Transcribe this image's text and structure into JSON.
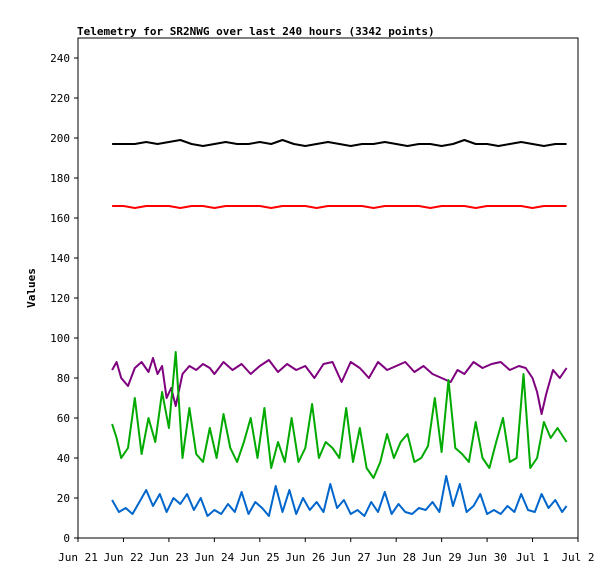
{
  "chart_data": {
    "type": "line",
    "title": "Telemetry for SR2NWG over last 240 hours (3342 points)",
    "xlabel": "",
    "ylabel": "Values",
    "ylim": [
      0,
      250
    ],
    "yticks": [
      0,
      20,
      40,
      60,
      80,
      100,
      120,
      140,
      160,
      180,
      200,
      220,
      240
    ],
    "xticks": [
      "Jun 21",
      "Jun 22",
      "Jun 23",
      "Jun 24",
      "Jun 25",
      "Jun 26",
      "Jun 27",
      "Jun 28",
      "Jun 29",
      "Jun 30",
      "Jul 1",
      "Jul 2"
    ],
    "xlim": [
      0,
      11
    ],
    "grid": false,
    "legend": "none",
    "series": [
      {
        "color": "#000000",
        "x": [
          0.75,
          1.0,
          1.25,
          1.5,
          1.75,
          2.0,
          2.25,
          2.5,
          2.75,
          3.0,
          3.25,
          3.5,
          3.75,
          4.0,
          4.25,
          4.5,
          4.75,
          5.0,
          5.25,
          5.5,
          5.75,
          6.0,
          6.25,
          6.5,
          6.75,
          7.0,
          7.25,
          7.5,
          7.75,
          8.0,
          8.25,
          8.5,
          8.75,
          9.0,
          9.25,
          9.5,
          9.75,
          10.0,
          10.25,
          10.5,
          10.75
        ],
        "values": [
          197,
          197,
          197,
          198,
          197,
          198,
          199,
          197,
          196,
          197,
          198,
          197,
          197,
          198,
          197,
          199,
          197,
          196,
          197,
          198,
          197,
          196,
          197,
          197,
          198,
          197,
          196,
          197,
          197,
          196,
          197,
          199,
          197,
          197,
          196,
          197,
          198,
          197,
          196,
          197,
          197
        ]
      },
      {
        "color": "#ff0000",
        "x": [
          0.75,
          1.0,
          1.25,
          1.5,
          1.75,
          2.0,
          2.25,
          2.5,
          2.75,
          3.0,
          3.25,
          3.5,
          3.75,
          4.0,
          4.25,
          4.5,
          4.75,
          5.0,
          5.25,
          5.5,
          5.75,
          6.0,
          6.25,
          6.5,
          6.75,
          7.0,
          7.25,
          7.5,
          7.75,
          8.0,
          8.25,
          8.5,
          8.75,
          9.0,
          9.25,
          9.5,
          9.75,
          10.0,
          10.25,
          10.5,
          10.75
        ],
        "values": [
          166,
          166,
          165,
          166,
          166,
          166,
          165,
          166,
          166,
          165,
          166,
          166,
          166,
          166,
          165,
          166,
          166,
          166,
          165,
          166,
          166,
          166,
          166,
          165,
          166,
          166,
          166,
          166,
          165,
          166,
          166,
          166,
          165,
          166,
          166,
          166,
          166,
          165,
          166,
          166,
          166
        ]
      },
      {
        "color": "#7f007f",
        "x": [
          0.75,
          0.85,
          0.95,
          1.1,
          1.25,
          1.4,
          1.55,
          1.65,
          1.75,
          1.85,
          1.95,
          2.05,
          2.15,
          2.3,
          2.45,
          2.6,
          2.75,
          2.9,
          3.0,
          3.2,
          3.4,
          3.6,
          3.8,
          4.0,
          4.2,
          4.4,
          4.6,
          4.8,
          5.0,
          5.2,
          5.4,
          5.6,
          5.8,
          6.0,
          6.2,
          6.4,
          6.6,
          6.8,
          7.0,
          7.2,
          7.4,
          7.6,
          7.8,
          8.0,
          8.2,
          8.35,
          8.5,
          8.7,
          8.9,
          9.1,
          9.3,
          9.5,
          9.7,
          9.85,
          10.0,
          10.1,
          10.2,
          10.3,
          10.45,
          10.6,
          10.75
        ],
        "values": [
          84,
          88,
          80,
          76,
          85,
          88,
          83,
          90,
          82,
          86,
          70,
          75,
          66,
          82,
          86,
          84,
          87,
          85,
          82,
          88,
          84,
          87,
          82,
          86,
          89,
          83,
          87,
          84,
          86,
          80,
          87,
          88,
          78,
          88,
          85,
          80,
          88,
          84,
          86,
          88,
          83,
          86,
          82,
          80,
          78,
          84,
          82,
          88,
          85,
          87,
          88,
          84,
          86,
          85,
          80,
          73,
          62,
          72,
          84,
          80,
          85
        ]
      },
      {
        "color": "#00aa00",
        "x": [
          0.75,
          0.85,
          0.95,
          1.1,
          1.25,
          1.4,
          1.55,
          1.7,
          1.85,
          2.0,
          2.15,
          2.3,
          2.45,
          2.6,
          2.75,
          2.9,
          3.05,
          3.2,
          3.35,
          3.5,
          3.65,
          3.8,
          3.95,
          4.1,
          4.25,
          4.4,
          4.55,
          4.7,
          4.85,
          5.0,
          5.15,
          5.3,
          5.45,
          5.6,
          5.75,
          5.9,
          6.05,
          6.2,
          6.35,
          6.5,
          6.65,
          6.8,
          6.95,
          7.1,
          7.25,
          7.4,
          7.55,
          7.7,
          7.85,
          8.0,
          8.15,
          8.3,
          8.45,
          8.6,
          8.75,
          8.9,
          9.05,
          9.2,
          9.35,
          9.5,
          9.65,
          9.8,
          9.95,
          10.1,
          10.25,
          10.4,
          10.55,
          10.75
        ],
        "values": [
          57,
          50,
          40,
          45,
          70,
          42,
          60,
          48,
          73,
          55,
          93,
          40,
          65,
          42,
          38,
          55,
          40,
          62,
          45,
          38,
          48,
          60,
          40,
          65,
          35,
          48,
          38,
          60,
          38,
          45,
          67,
          40,
          48,
          45,
          40,
          65,
          38,
          55,
          35,
          30,
          38,
          52,
          40,
          48,
          52,
          38,
          40,
          46,
          70,
          43,
          79,
          45,
          42,
          38,
          58,
          40,
          35,
          48,
          60,
          38,
          40,
          82,
          35,
          40,
          58,
          50,
          55,
          48
        ]
      },
      {
        "color": "#0066cc",
        "x": [
          0.75,
          0.9,
          1.05,
          1.2,
          1.35,
          1.5,
          1.65,
          1.8,
          1.95,
          2.1,
          2.25,
          2.4,
          2.55,
          2.7,
          2.85,
          3.0,
          3.15,
          3.3,
          3.45,
          3.6,
          3.75,
          3.9,
          4.05,
          4.2,
          4.35,
          4.5,
          4.65,
          4.8,
          4.95,
          5.1,
          5.25,
          5.4,
          5.55,
          5.7,
          5.85,
          6.0,
          6.15,
          6.3,
          6.45,
          6.6,
          6.75,
          6.9,
          7.05,
          7.2,
          7.35,
          7.5,
          7.65,
          7.8,
          7.95,
          8.1,
          8.25,
          8.4,
          8.55,
          8.7,
          8.85,
          9.0,
          9.15,
          9.3,
          9.45,
          9.6,
          9.75,
          9.9,
          10.05,
          10.2,
          10.35,
          10.5,
          10.65,
          10.75
        ],
        "values": [
          19,
          13,
          15,
          12,
          18,
          24,
          16,
          22,
          13,
          20,
          17,
          22,
          14,
          20,
          11,
          14,
          12,
          17,
          13,
          23,
          12,
          18,
          15,
          11,
          26,
          13,
          24,
          12,
          20,
          14,
          18,
          13,
          27,
          15,
          19,
          12,
          14,
          11,
          18,
          13,
          23,
          12,
          17,
          13,
          12,
          15,
          14,
          18,
          13,
          31,
          16,
          27,
          13,
          16,
          22,
          12,
          14,
          12,
          16,
          13,
          22,
          14,
          13,
          22,
          15,
          19,
          13,
          16
        ]
      }
    ]
  }
}
